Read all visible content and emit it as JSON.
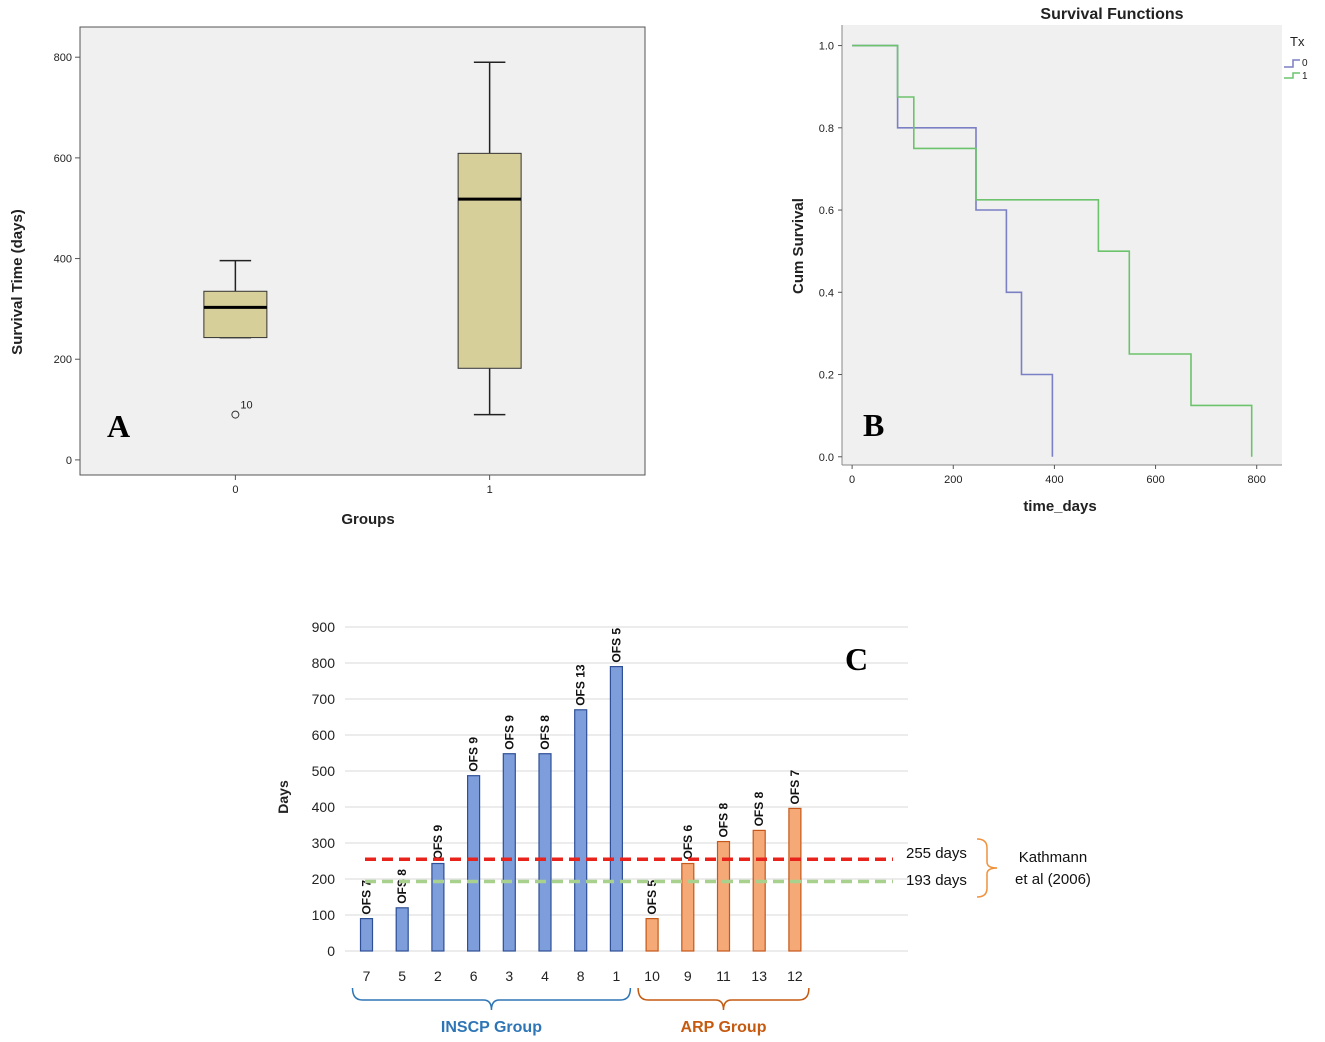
{
  "chart_data": [
    {
      "panel": "A",
      "type": "box",
      "title": "",
      "xlabel": "Groups",
      "ylabel": "Survival Time (days)",
      "categories": [
        "0",
        "1"
      ],
      "ylim": [
        -30,
        860
      ],
      "yticks": [
        0,
        200,
        400,
        600,
        800
      ],
      "boxes": [
        {
          "group": "0",
          "min": 243,
          "q1": 243,
          "median": 303,
          "q3": 335,
          "max": 396
        },
        {
          "group": "1",
          "min": 90,
          "q1": 182,
          "median": 518,
          "q3": 609,
          "max": 790
        }
      ],
      "outliers": [
        {
          "group": "0",
          "value": 90,
          "label": "10"
        }
      ],
      "box_color": "#d6cf9a",
      "panel_letter": "A"
    },
    {
      "panel": "B",
      "type": "line",
      "title": "Survival Functions",
      "xlabel": "time_days",
      "ylabel": "Cum Survival",
      "xlim": [
        -20,
        850
      ],
      "ylim": [
        -0.02,
        1.05
      ],
      "xticks": [
        0,
        200,
        400,
        600,
        800
      ],
      "yticks": [
        0.0,
        0.2,
        0.4,
        0.6,
        0.8,
        1.0
      ],
      "yticklabels": [
        "0.0",
        "0.2",
        "0.4",
        "0.6",
        "0.8",
        "1.0"
      ],
      "legend_title": "Tx",
      "series": [
        {
          "name": "0",
          "color": "#7b7fc4",
          "x": [
            0,
            90,
            90,
            245,
            245,
            305,
            305,
            335,
            335,
            396,
            396
          ],
          "y": [
            1.0,
            1.0,
            0.8,
            0.8,
            0.6,
            0.6,
            0.4,
            0.4,
            0.2,
            0.2,
            0.0
          ]
        },
        {
          "name": "1",
          "color": "#6cc36c",
          "x": [
            0,
            90,
            90,
            122,
            122,
            245,
            245,
            487,
            487,
            548,
            548,
            670,
            670,
            790,
            790
          ],
          "y": [
            1.0,
            1.0,
            0.875,
            0.875,
            0.75,
            0.75,
            0.625,
            0.625,
            0.5,
            0.5,
            0.25,
            0.25,
            0.125,
            0.125,
            0.0
          ]
        }
      ],
      "panel_letter": "B"
    },
    {
      "panel": "C",
      "type": "bar",
      "title": "",
      "xlabel": "",
      "ylabel": "Days",
      "ylim": [
        0,
        900
      ],
      "yticks": [
        0,
        100,
        200,
        300,
        400,
        500,
        600,
        700,
        800,
        900
      ],
      "categories": [
        "7",
        "5",
        "2",
        "6",
        "3",
        "4",
        "8",
        "1",
        "10",
        "9",
        "11",
        "13",
        "12"
      ],
      "values": [
        90,
        120,
        243,
        487,
        548,
        548,
        670,
        790,
        90,
        243,
        304,
        335,
        396
      ],
      "bar_labels": [
        "OFS 7",
        "OFS 8",
        "OFS 9",
        "OFS 9",
        "OFS 9",
        "OFS 8",
        "OFS 13",
        "OFS 5",
        "OFS 5",
        "OFS 6",
        "OFS 8",
        "OFS 8",
        "OFS 7"
      ],
      "groups": [
        {
          "name": "INSCP Group",
          "color": "#7d9ddb",
          "edge": "#2f4f96",
          "label_color": "#2e75b6",
          "start": 0,
          "end": 7
        },
        {
          "name": "ARP Group",
          "color": "#f4a977",
          "edge": "#c5581a",
          "label_color": "#c55a11",
          "start": 8,
          "end": 12
        }
      ],
      "reference_lines": [
        {
          "value": 255,
          "label": "255 days",
          "color": "#e8231b"
        },
        {
          "value": 193,
          "label": "193 days",
          "color": "#a9d18e"
        }
      ],
      "annotation": [
        "Kathmann",
        "et al  (2006)"
      ],
      "panel_letter": "C"
    }
  ]
}
